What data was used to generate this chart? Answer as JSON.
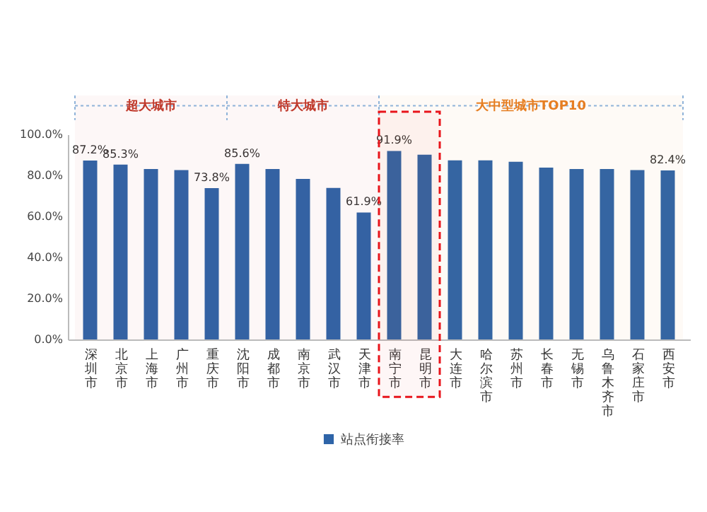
{
  "chart_data": {
    "type": "bar",
    "categories": [
      "深圳市",
      "北京市",
      "上海市",
      "广州市",
      "重庆市",
      "沈阳市",
      "成都市",
      "南京市",
      "武汉市",
      "天津市",
      "南宁市",
      "昆明市",
      "大连市",
      "哈尔滨市",
      "苏州市",
      "长春市",
      "无锡市",
      "乌鲁木齐市",
      "石家庄市",
      "西安市"
    ],
    "series": [
      {
        "name": "站点衔接率",
        "color": "#2e64a8",
        "values": [
          87.2,
          85.3,
          83.1,
          82.6,
          73.8,
          85.6,
          83.1,
          78.3,
          73.9,
          61.9,
          91.9,
          90.1,
          87.3,
          87.3,
          86.6,
          83.8,
          83.1,
          83.1,
          82.6,
          82.4
        ],
        "value_labels": [
          "87.2%",
          "85.3%",
          null,
          null,
          "73.8%",
          "85.6%",
          null,
          null,
          null,
          "61.9%",
          "91.9%",
          null,
          null,
          null,
          null,
          null,
          null,
          null,
          null,
          "82.4%"
        ]
      }
    ],
    "ylim": [
      0,
      100
    ],
    "yticks": [
      {
        "value": 0,
        "label": "0.0%"
      },
      {
        "value": 20,
        "label": "20.0%"
      },
      {
        "value": 40,
        "label": "40.0%"
      },
      {
        "value": 60,
        "label": "60.0%"
      },
      {
        "value": 80,
        "label": "80.0%"
      },
      {
        "value": 100,
        "label": "100.0%"
      }
    ],
    "grid": false,
    "legend": "bottom",
    "bands": [
      {
        "axis": "x",
        "from": "深圳市",
        "to": "重庆市",
        "label": "超大城市",
        "color": "#c0392b"
      },
      {
        "axis": "x",
        "from": "沈阳市",
        "to": "天津市",
        "label": "特大城市",
        "color": "#c0392b"
      },
      {
        "axis": "x",
        "from": "南宁市",
        "to": "西安市",
        "label": "大中型城市TOP10",
        "color": "#e67e22"
      },
      {
        "axis": "x",
        "from": "南宁市",
        "to": "昆明市",
        "color": "#e8141b"
      }
    ]
  }
}
